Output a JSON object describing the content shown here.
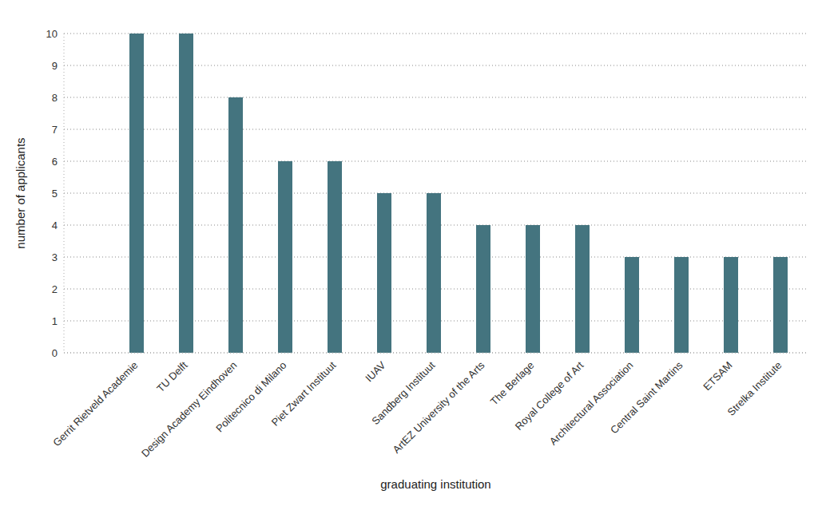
{
  "chart_data": {
    "type": "bar",
    "x_label": "graduating institution",
    "y_label": "number of applicants",
    "categories": [
      "Gerrit Rietveld Academie",
      "TU Delft",
      "Design Academy Eindhoven",
      "Politecnico di Milano",
      "Piet Zwart Instituut",
      "IUAV",
      "Sandberg Instituut",
      "ArtEZ University of the Arts",
      "The Berlage",
      "Royal College of Art",
      "Architectural Association",
      "Central Saint Martins",
      "ETSAM",
      "Strelka Institute"
    ],
    "values": [
      10,
      10,
      8,
      6,
      6,
      5,
      5,
      4,
      4,
      4,
      3,
      3,
      3,
      3
    ],
    "color": "#44747f",
    "ylim": [
      0,
      10
    ],
    "yticks": [
      0,
      1,
      2,
      3,
      4,
      5,
      6,
      7,
      8,
      9,
      10
    ],
    "grid": true
  }
}
